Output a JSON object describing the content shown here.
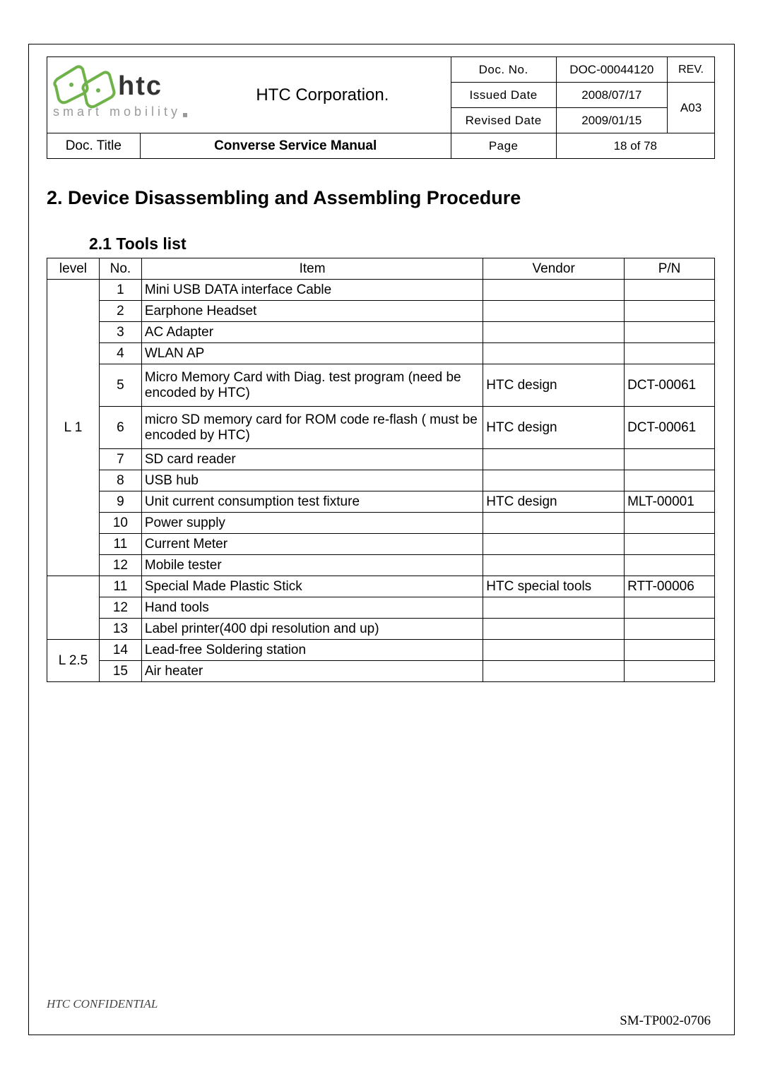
{
  "header": {
    "company": "HTC Corporation.",
    "logo_text_main": "htc",
    "logo_text_sub": "smart mobility",
    "doc_no_label": "Doc. No.",
    "doc_no_value": "DOC-00044120",
    "issued_date_label": "Issued Date",
    "issued_date_value": "2008/07/17",
    "revised_date_label": "Revised Date",
    "revised_date_value": "2009/01/15",
    "rev_label": "REV.",
    "rev_value": "A03",
    "doc_title_label": "Doc. Title",
    "doc_title_value": "Converse Service Manual",
    "page_label": "Page",
    "page_value": "18  of  78"
  },
  "headings": {
    "h2": "2.  Device Disassembling and Assembling Procedure",
    "h3": "2.1  Tools list"
  },
  "tools": {
    "columns": {
      "level": "level",
      "no": "No.",
      "item": "Item",
      "vendor": "Vendor",
      "pn": "P/N"
    },
    "rows": [
      {
        "level": "",
        "no": "1",
        "item": "Mini USB DATA interface Cable",
        "vendor": "",
        "pn": ""
      },
      {
        "level": "",
        "no": "2",
        "item": "Earphone Headset",
        "vendor": "",
        "pn": ""
      },
      {
        "level": "",
        "no": "3",
        "item": "AC Adapter",
        "vendor": "",
        "pn": ""
      },
      {
        "level": "",
        "no": "4",
        "item": "WLAN AP",
        "vendor": "",
        "pn": ""
      },
      {
        "level": "",
        "no": "5",
        "item": "Micro Memory Card with Diag. test program (need be encoded by HTC)",
        "vendor": "HTC design",
        "pn": "DCT-00061",
        "tall": true
      },
      {
        "level": "",
        "no": "6",
        "item": "micro SD memory card for ROM code re-flash ( must be encoded by HTC)",
        "vendor": "HTC design",
        "pn": "DCT-00061",
        "tall": true
      },
      {
        "level": "L 1",
        "no": "7",
        "item": "SD card reader",
        "vendor": "",
        "pn": "",
        "show_level": true
      },
      {
        "level": "",
        "no": "8",
        "item": "USB hub",
        "vendor": "",
        "pn": ""
      },
      {
        "level": "",
        "no": "9",
        "item": "Unit current consumption test fixture",
        "vendor": "HTC design",
        "pn": "MLT-00001"
      },
      {
        "level": "",
        "no": "10",
        "item": "Power supply",
        "vendor": "",
        "pn": ""
      },
      {
        "level": "",
        "no": "11",
        "item": "Current Meter",
        "vendor": "",
        "pn": ""
      },
      {
        "level": "",
        "no": "12",
        "item": "Mobile tester",
        "vendor": "",
        "pn": ""
      },
      {
        "level": "",
        "no": "11",
        "item": "Special Made Plastic Stick",
        "vendor": "HTC special tools",
        "pn": "RTT-00006",
        "new_group": true
      },
      {
        "level": "",
        "no": "12",
        "item": "Hand tools",
        "vendor": "",
        "pn": ""
      },
      {
        "level": "",
        "no": "13",
        "item": "Label printer(400 dpi resolution and up)",
        "vendor": "",
        "pn": ""
      },
      {
        "level": "L 2.5",
        "no": "14",
        "item": "Lead-free Soldering station",
        "vendor": "",
        "pn": "",
        "show_level": true,
        "level_span": 2
      },
      {
        "level": "",
        "no": "15",
        "item": "Air heater",
        "vendor": "",
        "pn": ""
      }
    ]
  },
  "footer": {
    "left": "HTC CONFIDENTIAL",
    "right": "SM-TP002-0706"
  }
}
